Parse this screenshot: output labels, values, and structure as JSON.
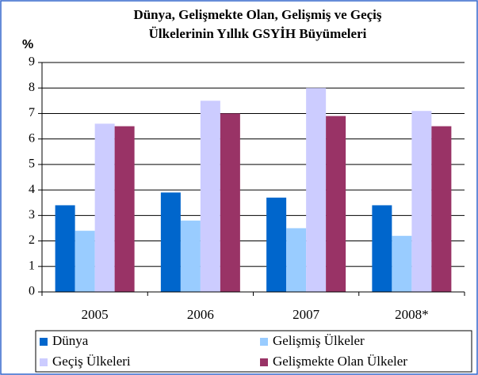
{
  "chart_data": {
    "type": "bar",
    "title": [
      "Dünya, Gelişmekte Olan, Gelişmiş ve Geçiş",
      "Ülkelerinin Yıllık GSYİH Büyümeleri"
    ],
    "ylabel": "%",
    "categories": [
      "2005",
      "2006",
      "2007",
      "2008*"
    ],
    "series": [
      {
        "name": "Dünya",
        "color": "#0066cc",
        "values": [
          3.4,
          3.9,
          3.7,
          3.4
        ]
      },
      {
        "name": "Gelişmiş Ülkeler",
        "color": "#99ccff",
        "values": [
          2.4,
          2.8,
          2.5,
          2.2
        ]
      },
      {
        "name": "Geçiş Ülkeleri",
        "color": "#ccccff",
        "values": [
          6.6,
          7.5,
          8.0,
          7.1
        ]
      },
      {
        "name": "Gelişmekte Olan Ülkeler",
        "color": "#993366",
        "values": [
          6.5,
          7.0,
          6.9,
          6.5
        ]
      }
    ],
    "ylim": [
      0,
      9
    ],
    "yticks": [
      0,
      1,
      2,
      3,
      4,
      5,
      6,
      7,
      8,
      9
    ],
    "grid": true
  }
}
